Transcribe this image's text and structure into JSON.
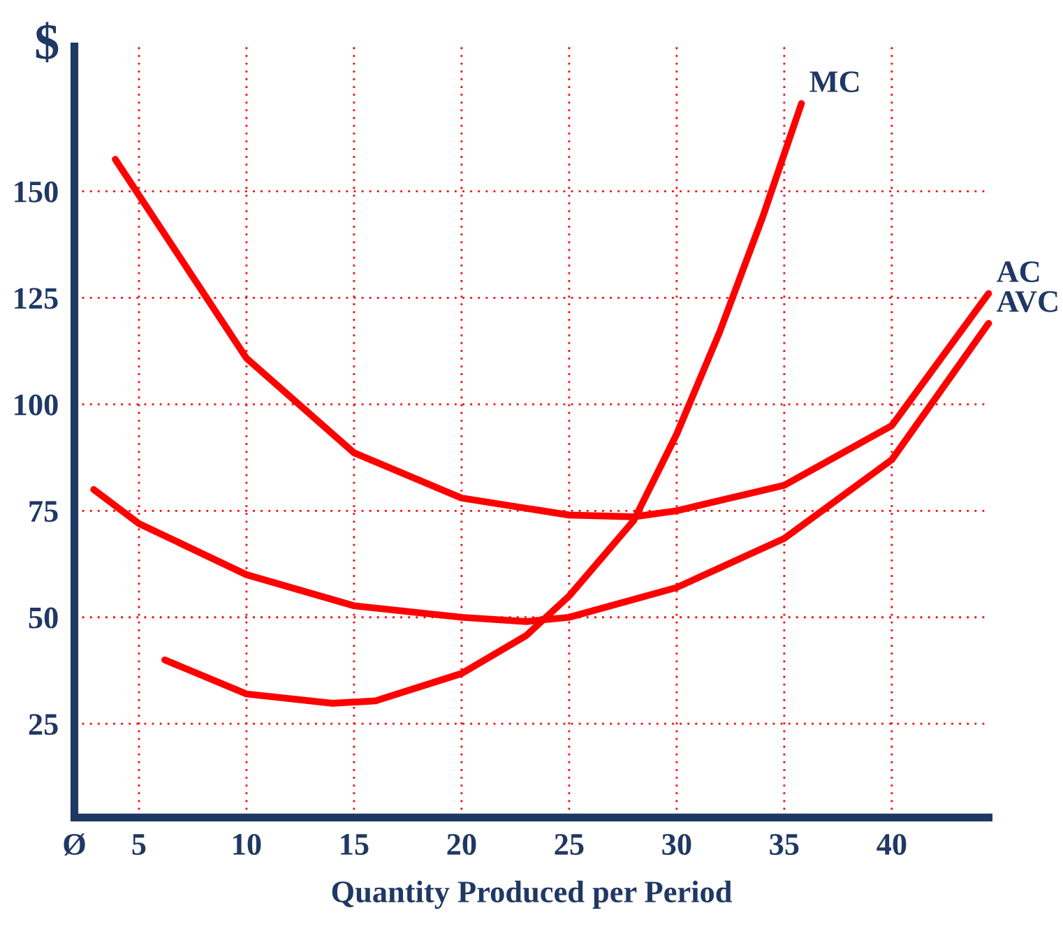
{
  "chart_data": {
    "type": "line",
    "ylabel": "$",
    "xlabel": "Quantity Produced per Period",
    "xlim": [
      2,
      44.5
    ],
    "ylim": [
      3,
      184
    ],
    "xticks": [
      {
        "value": 2,
        "label": "Ø"
      },
      5,
      10,
      15,
      20,
      25,
      30,
      35,
      40
    ],
    "yticks": [
      25,
      50,
      75,
      100,
      125,
      150
    ],
    "grid": true,
    "legend": false,
    "marker": "none",
    "line_style": "solid",
    "series": [
      {
        "name": "MC",
        "color": "#ff0000",
        "x": [
          6.2,
          10,
          14,
          16,
          20,
          23,
          25,
          28,
          30,
          32,
          34,
          35.8
        ],
        "values": [
          40,
          32,
          29.8,
          30.4,
          36.8,
          45.7,
          55,
          72.7,
          93,
          117,
          144,
          170.6
        ]
      },
      {
        "name": "AC",
        "color": "#ff0000",
        "x": [
          3.9,
          10,
          15,
          20,
          25,
          28,
          30,
          35,
          40,
          44.5
        ],
        "values": [
          157.5,
          110.8,
          88.6,
          78,
          74,
          73.6,
          75,
          81,
          95,
          126
        ]
      },
      {
        "name": "AVC",
        "color": "#ff0000",
        "x": [
          2.9,
          5,
          10,
          15,
          20,
          23,
          25,
          30,
          35,
          40,
          44.5
        ],
        "values": [
          80,
          72,
          60,
          52.7,
          50,
          49,
          50,
          57,
          68.5,
          87,
          119
        ]
      }
    ]
  }
}
